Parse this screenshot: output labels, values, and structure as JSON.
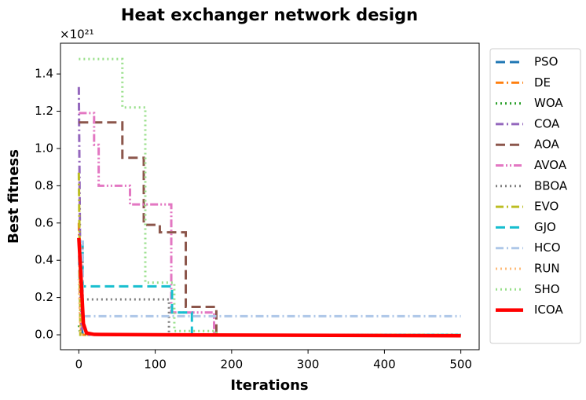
{
  "chart_data": {
    "type": "line",
    "title": "Heat exchanger network design",
    "x_label": "Iterations",
    "y_label": "Best fitness",
    "y_offset_label": "×10²¹",
    "xlim": [
      -24,
      524
    ],
    "ylim": [
      -0.08,
      1.565
    ],
    "xticks": [
      0,
      100,
      200,
      300,
      400,
      500
    ],
    "yticks": [
      {
        "value": 0,
        "label": "0.0"
      },
      0.2,
      0.4,
      0.6,
      0.8,
      {
        "value": 1,
        "label": "1.0"
      },
      1.2,
      1.4
    ],
    "legend": "outside-right",
    "series": [
      {
        "name": "PSO",
        "color": "#1f77b4",
        "style": "dashed",
        "x": [
          0,
          2,
          5,
          500
        ],
        "values": [
          0.5,
          0.1,
          0,
          0
        ]
      },
      {
        "name": "DE",
        "color": "#ff7f0e",
        "style": "dashdot",
        "x": [
          0,
          1,
          3,
          500
        ],
        "values": [
          0.6,
          0.3,
          0,
          0
        ]
      },
      {
        "name": "WOA",
        "color": "#2ca02c",
        "style": "dotted",
        "x": [
          0,
          2,
          500
        ],
        "values": [
          0.05,
          0,
          0
        ]
      },
      {
        "name": "COA",
        "color": "#9467bd",
        "style": "dashdot",
        "x": [
          0,
          1,
          2,
          4,
          500
        ],
        "values": [
          1.33,
          0.8,
          0.3,
          0,
          0
        ]
      },
      {
        "name": "AOA",
        "color": "#8c564b",
        "style": "dashed",
        "x": [
          0,
          57,
          57,
          85,
          85,
          106,
          106,
          140,
          140,
          180,
          180,
          500
        ],
        "values": [
          1.14,
          1.14,
          0.95,
          0.95,
          0.59,
          0.59,
          0.55,
          0.55,
          0.15,
          0.15,
          0,
          0
        ]
      },
      {
        "name": "AVOA",
        "color": "#e377c2",
        "style": "dashdotdot",
        "x": [
          0,
          20,
          20,
          26,
          26,
          67,
          67,
          121,
          121,
          177,
          177,
          500
        ],
        "values": [
          1.19,
          1.19,
          1.02,
          1.02,
          0.8,
          0.8,
          0.7,
          0.7,
          0.12,
          0.12,
          0,
          0
        ]
      },
      {
        "name": "BBOA",
        "color": "#7f7f7f",
        "style": "dotted",
        "x": [
          0,
          5,
          5,
          118,
          118,
          500
        ],
        "values": [
          0.5,
          0.5,
          0.19,
          0.19,
          0,
          0
        ]
      },
      {
        "name": "EVO",
        "color": "#bcbd22",
        "style": "dashdot",
        "x": [
          0,
          1,
          2,
          500
        ],
        "values": [
          0.87,
          0.5,
          0,
          0
        ]
      },
      {
        "name": "GJO",
        "color": "#17becf",
        "style": "dashed",
        "x": [
          0,
          5,
          5,
          122,
          122,
          148,
          148,
          500
        ],
        "values": [
          0.5,
          0.5,
          0.26,
          0.26,
          0.12,
          0.12,
          0,
          0
        ]
      },
      {
        "name": "HCO",
        "color": "#aec7e8",
        "style": "dashdot",
        "x": [
          0,
          5,
          5,
          500
        ],
        "values": [
          0.5,
          0.5,
          0.1,
          0.1
        ]
      },
      {
        "name": "RUN",
        "color": "#ffbb78",
        "style": "dotted",
        "x": [
          0,
          2,
          500
        ],
        "values": [
          0.3,
          0,
          0
        ]
      },
      {
        "name": "SHO",
        "color": "#98df8a",
        "style": "dotted",
        "x": [
          0,
          57,
          57,
          87,
          87,
          95,
          95,
          125,
          125,
          180,
          180,
          500
        ],
        "values": [
          1.48,
          1.48,
          1.22,
          1.22,
          0.28,
          0.28,
          0.28,
          0.28,
          0.02,
          0.02,
          0,
          0
        ]
      },
      {
        "name": "ICOA",
        "color": "#ff0000",
        "style": "solid",
        "x": [
          0,
          3,
          6,
          10,
          20,
          100,
          500
        ],
        "values": [
          0.52,
          0.3,
          0.06,
          0.01,
          0.002,
          0,
          -0.005
        ]
      }
    ]
  }
}
